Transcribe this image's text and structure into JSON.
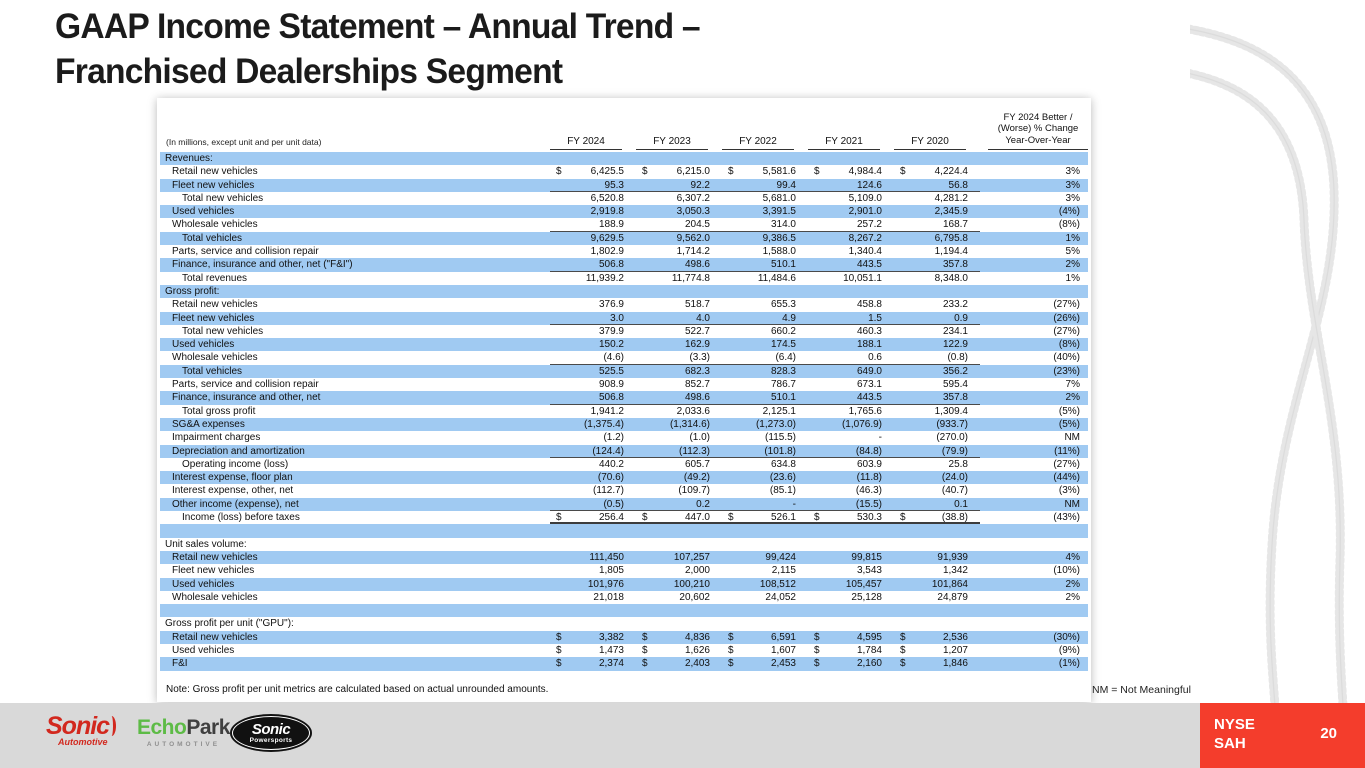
{
  "slide": {
    "title_line1": "GAAP Income Statement – Annual Trend –",
    "title_line2": "Franchised Dealerships Segment",
    "note": "Note: Gross profit per unit metrics are calculated based on actual unrounded amounts.",
    "nm_legend": "NM = Not Meaningful",
    "ticker_line1": "NYSE",
    "ticker_line2": "SAH",
    "page_number": "20"
  },
  "logos": {
    "sonic_automotive": {
      "name": "Sonic",
      "sub": "Automotive"
    },
    "echopark": {
      "green_part": "Echo",
      "dark_part": "Park",
      "sub": "AUTOMOTIVE"
    },
    "sonic_powersports": {
      "name": "Sonic",
      "sub": "Powersports"
    }
  },
  "colors": {
    "row_shade_blue": "#A0CAF2",
    "ticker_red": "#F43D2C",
    "footer_gray": "#D9D9D9",
    "sonic_red": "#D2281E",
    "echopark_green": "#5DBB46"
  },
  "table": {
    "units_label": "(In millions, except unit and per unit data)",
    "columns": [
      "FY 2024",
      "FY 2023",
      "FY 2022",
      "FY 2021",
      "FY 2020"
    ],
    "change_header_lines": [
      "FY 2024 Better /",
      "(Worse) % Change",
      "Year-Over-Year"
    ],
    "rows": [
      {
        "label": "Revenues:",
        "type": "section"
      },
      {
        "label": "Retail new vehicles",
        "indent": 1,
        "dollar": true,
        "values": [
          "6,425.5",
          "6,215.0",
          "5,581.6",
          "4,984.4",
          "4,224.4"
        ],
        "change": "3%"
      },
      {
        "label": "Fleet new vehicles",
        "indent": 1,
        "values": [
          "95.3",
          "92.2",
          "99.4",
          "124.6",
          "56.8"
        ],
        "change": "3%",
        "rule": "sum"
      },
      {
        "label": "Total new vehicles",
        "indent": 2,
        "values": [
          "6,520.8",
          "6,307.2",
          "5,681.0",
          "5,109.0",
          "4,281.2"
        ],
        "change": "3%"
      },
      {
        "label": "Used vehicles",
        "indent": 1,
        "values": [
          "2,919.8",
          "3,050.3",
          "3,391.5",
          "2,901.0",
          "2,345.9"
        ],
        "change": "(4%)"
      },
      {
        "label": "Wholesale vehicles",
        "indent": 1,
        "values": [
          "188.9",
          "204.5",
          "314.0",
          "257.2",
          "168.7"
        ],
        "change": "(8%)",
        "rule": "sum"
      },
      {
        "label": "Total vehicles",
        "indent": 2,
        "values": [
          "9,629.5",
          "9,562.0",
          "9,386.5",
          "8,267.2",
          "6,795.8"
        ],
        "change": "1%"
      },
      {
        "label": "Parts, service and collision repair",
        "indent": 1,
        "values": [
          "1,802.9",
          "1,714.2",
          "1,588.0",
          "1,340.4",
          "1,194.4"
        ],
        "change": "5%"
      },
      {
        "label": "Finance, insurance and other, net (\"F&I\")",
        "indent": 1,
        "values": [
          "506.8",
          "498.6",
          "510.1",
          "443.5",
          "357.8"
        ],
        "change": "2%",
        "rule": "sum"
      },
      {
        "label": "Total revenues",
        "indent": 2,
        "values": [
          "11,939.2",
          "11,774.8",
          "11,484.6",
          "10,051.1",
          "8,348.0"
        ],
        "change": "1%"
      },
      {
        "label": "Gross profit:",
        "type": "section"
      },
      {
        "label": "Retail new vehicles",
        "indent": 1,
        "values": [
          "376.9",
          "518.7",
          "655.3",
          "458.8",
          "233.2"
        ],
        "change": "(27%)"
      },
      {
        "label": "Fleet new vehicles",
        "indent": 1,
        "values": [
          "3.0",
          "4.0",
          "4.9",
          "1.5",
          "0.9"
        ],
        "change": "(26%)",
        "rule": "sum"
      },
      {
        "label": "Total new vehicles",
        "indent": 2,
        "values": [
          "379.9",
          "522.7",
          "660.2",
          "460.3",
          "234.1"
        ],
        "change": "(27%)"
      },
      {
        "label": "Used vehicles",
        "indent": 1,
        "values": [
          "150.2",
          "162.9",
          "174.5",
          "188.1",
          "122.9"
        ],
        "change": "(8%)"
      },
      {
        "label": "Wholesale vehicles",
        "indent": 1,
        "values": [
          "(4.6)",
          "(3.3)",
          "(6.4)",
          "0.6",
          "(0.8)"
        ],
        "change": "(40%)",
        "rule": "sum"
      },
      {
        "label": "Total vehicles",
        "indent": 2,
        "values": [
          "525.5",
          "682.3",
          "828.3",
          "649.0",
          "356.2"
        ],
        "change": "(23%)"
      },
      {
        "label": "Parts, service and collision repair",
        "indent": 1,
        "values": [
          "908.9",
          "852.7",
          "786.7",
          "673.1",
          "595.4"
        ],
        "change": "7%"
      },
      {
        "label": "Finance, insurance and other, net",
        "indent": 1,
        "values": [
          "506.8",
          "498.6",
          "510.1",
          "443.5",
          "357.8"
        ],
        "change": "2%",
        "rule": "sum"
      },
      {
        "label": "Total gross profit",
        "indent": 2,
        "values": [
          "1,941.2",
          "2,033.6",
          "2,125.1",
          "1,765.6",
          "1,309.4"
        ],
        "change": "(5%)"
      },
      {
        "label": "SG&A expenses",
        "indent": 1,
        "values": [
          "(1,375.4)",
          "(1,314.6)",
          "(1,273.0)",
          "(1,076.9)",
          "(933.7)"
        ],
        "change": "(5%)"
      },
      {
        "label": "Impairment charges",
        "indent": 1,
        "values": [
          "(1.2)",
          "(1.0)",
          "(115.5)",
          "-",
          "(270.0)"
        ],
        "change": "NM"
      },
      {
        "label": "Depreciation and amortization",
        "indent": 1,
        "values": [
          "(124.4)",
          "(112.3)",
          "(101.8)",
          "(84.8)",
          "(79.9)"
        ],
        "change": "(11%)",
        "rule": "sum"
      },
      {
        "label": "Operating income (loss)",
        "indent": 2,
        "values": [
          "440.2",
          "605.7",
          "634.8",
          "603.9",
          "25.8"
        ],
        "change": "(27%)"
      },
      {
        "label": "Interest expense, floor plan",
        "indent": 1,
        "values": [
          "(70.6)",
          "(49.2)",
          "(23.6)",
          "(11.8)",
          "(24.0)"
        ],
        "change": "(44%)"
      },
      {
        "label": "Interest expense, other, net",
        "indent": 1,
        "values": [
          "(112.7)",
          "(109.7)",
          "(85.1)",
          "(46.3)",
          "(40.7)"
        ],
        "change": "(3%)"
      },
      {
        "label": "Other income (expense), net",
        "indent": 1,
        "values": [
          "(0.5)",
          "0.2",
          "-",
          "(15.5)",
          "0.1"
        ],
        "change": "NM",
        "rule": "sum"
      },
      {
        "label": "Income (loss) before taxes",
        "indent": 2,
        "dollar": true,
        "values": [
          "256.4",
          "447.0",
          "526.1",
          "530.3",
          "(38.8)"
        ],
        "change": "(43%)",
        "rule": "total"
      },
      {
        "type": "blank"
      },
      {
        "label": "Unit sales volume:",
        "type": "section"
      },
      {
        "label": "Retail new vehicles",
        "indent": 1,
        "values": [
          "111,450",
          "107,257",
          "99,424",
          "99,815",
          "91,939"
        ],
        "change": "4%"
      },
      {
        "label": "Fleet new vehicles",
        "indent": 1,
        "values": [
          "1,805",
          "2,000",
          "2,115",
          "3,543",
          "1,342"
        ],
        "change": "(10%)"
      },
      {
        "label": "Used vehicles",
        "indent": 1,
        "values": [
          "101,976",
          "100,210",
          "108,512",
          "105,457",
          "101,864"
        ],
        "change": "2%"
      },
      {
        "label": "Wholesale vehicles",
        "indent": 1,
        "values": [
          "21,018",
          "20,602",
          "24,052",
          "25,128",
          "24,879"
        ],
        "change": "2%"
      },
      {
        "type": "blank"
      },
      {
        "label": "Gross profit per unit (\"GPU\"):",
        "type": "section"
      },
      {
        "label": "Retail new vehicles",
        "indent": 1,
        "dollar": true,
        "values": [
          "3,382",
          "4,836",
          "6,591",
          "4,595",
          "2,536"
        ],
        "change": "(30%)"
      },
      {
        "label": "Used vehicles",
        "indent": 1,
        "dollar": true,
        "values": [
          "1,473",
          "1,626",
          "1,607",
          "1,784",
          "1,207"
        ],
        "change": "(9%)"
      },
      {
        "label": "F&I",
        "indent": 1,
        "dollar": true,
        "values": [
          "2,374",
          "2,403",
          "2,453",
          "2,160",
          "1,846"
        ],
        "change": "(1%)"
      }
    ]
  }
}
